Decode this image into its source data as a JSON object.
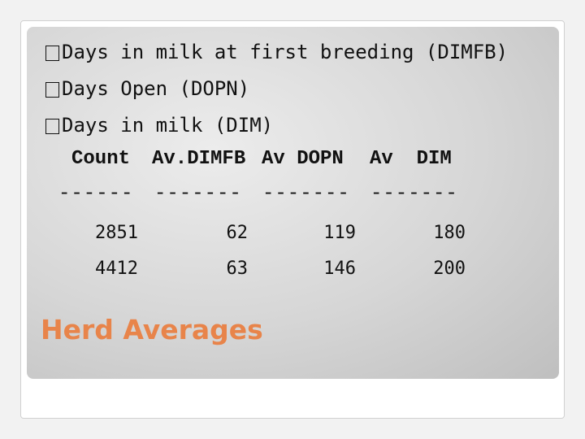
{
  "bullets": [
    "Days in milk at first breeding (DIMFB)",
    "Days Open (DOPN)",
    "Days in milk (DIM)"
  ],
  "table": {
    "header": [
      "Count",
      "Av.DIMFB",
      "Av DOPN",
      "Av  DIM"
    ],
    "separators": [
      "------",
      "-------",
      "-------",
      "-------"
    ],
    "rows": [
      [
        2851,
        62,
        119,
        180
      ],
      [
        4412,
        63,
        146,
        200
      ]
    ]
  },
  "title": "Herd Averages"
}
